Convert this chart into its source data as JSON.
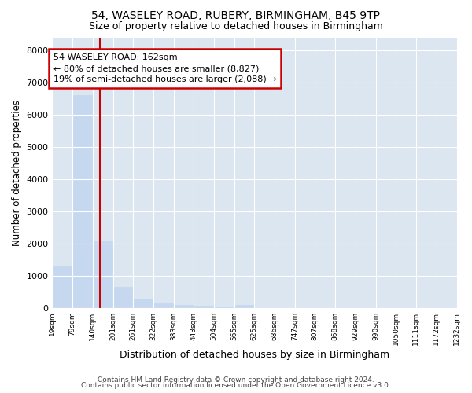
{
  "title1": "54, WASELEY ROAD, RUBERY, BIRMINGHAM, B45 9TP",
  "title2": "Size of property relative to detached houses in Birmingham",
  "xlabel": "Distribution of detached houses by size in Birmingham",
  "ylabel": "Number of detached properties",
  "footer1": "Contains HM Land Registry data © Crown copyright and database right 2024.",
  "footer2": "Contains public sector information licensed under the Open Government Licence v3.0.",
  "annotation_line1": "54 WASELEY ROAD: 162sqm",
  "annotation_line2": "← 80% of detached houses are smaller (8,827)",
  "annotation_line3": "19% of semi-detached houses are larger (2,088) →",
  "bar_left_edges": [
    19,
    79,
    140,
    201,
    261,
    322,
    383,
    443,
    504,
    565,
    625,
    686,
    747,
    807,
    868,
    929,
    990,
    1050,
    1111,
    1172
  ],
  "bar_heights": [
    1300,
    6600,
    2100,
    660,
    290,
    145,
    100,
    60,
    50,
    100,
    0,
    0,
    0,
    0,
    0,
    0,
    0,
    0,
    0,
    0
  ],
  "bin_width": 61,
  "bar_color": "#c5d8ef",
  "bar_edge_color": "#c5d8ef",
  "vline_color": "#cc0000",
  "vline_x": 162,
  "annotation_box_edge_color": "#cc0000",
  "background_color": "#dce6f0",
  "grid_color": "#ffffff",
  "ylim": [
    0,
    8400
  ],
  "yticks": [
    0,
    1000,
    2000,
    3000,
    4000,
    5000,
    6000,
    7000,
    8000
  ],
  "tick_labels": [
    "19sqm",
    "79sqm",
    "140sqm",
    "201sqm",
    "261sqm",
    "322sqm",
    "383sqm",
    "443sqm",
    "504sqm",
    "565sqm",
    "625sqm",
    "686sqm",
    "747sqm",
    "807sqm",
    "868sqm",
    "929sqm",
    "990sqm",
    "1050sqm",
    "1111sqm",
    "1172sqm",
    "1232sqm"
  ]
}
